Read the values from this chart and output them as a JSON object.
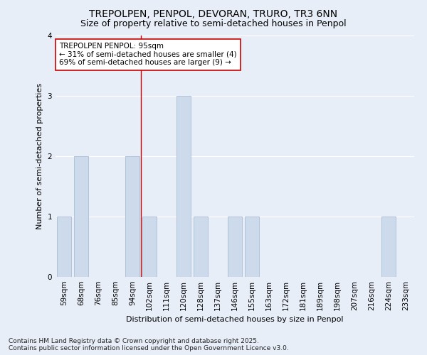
{
  "title_line1": "TREPOLPEN, PENPOL, DEVORAN, TRURO, TR3 6NN",
  "title_line2": "Size of property relative to semi-detached houses in Penpol",
  "categories": [
    "59sqm",
    "68sqm",
    "76sqm",
    "85sqm",
    "94sqm",
    "102sqm",
    "111sqm",
    "120sqm",
    "128sqm",
    "137sqm",
    "146sqm",
    "155sqm",
    "163sqm",
    "172sqm",
    "181sqm",
    "189sqm",
    "198sqm",
    "207sqm",
    "216sqm",
    "224sqm",
    "233sqm"
  ],
  "values": [
    1,
    2,
    0,
    0,
    2,
    1,
    0,
    3,
    1,
    0,
    1,
    1,
    0,
    0,
    0,
    0,
    0,
    0,
    0,
    1,
    0
  ],
  "bar_color": "#ccdaeb",
  "bar_edge_color": "#aabdd4",
  "red_line_index": 4,
  "annotation_title": "TREPOLPEN PENPOL: 95sqm",
  "annotation_line1": "← 31% of semi-detached houses are smaller (4)",
  "annotation_line2": "69% of semi-detached houses are larger (9) →",
  "ylabel": "Number of semi-detached properties",
  "xlabel": "Distribution of semi-detached houses by size in Penpol",
  "ylim": [
    0,
    4
  ],
  "yticks": [
    0,
    1,
    2,
    3,
    4
  ],
  "background_color": "#e8eef8",
  "plot_bg_color": "#e8eef8",
  "grid_color": "#ffffff",
  "footer_line1": "Contains HM Land Registry data © Crown copyright and database right 2025.",
  "footer_line2": "Contains public sector information licensed under the Open Government Licence v3.0.",
  "title_fontsize": 10,
  "subtitle_fontsize": 9,
  "axis_label_fontsize": 8,
  "tick_fontsize": 7.5,
  "annotation_fontsize": 7.5,
  "footer_fontsize": 6.5
}
